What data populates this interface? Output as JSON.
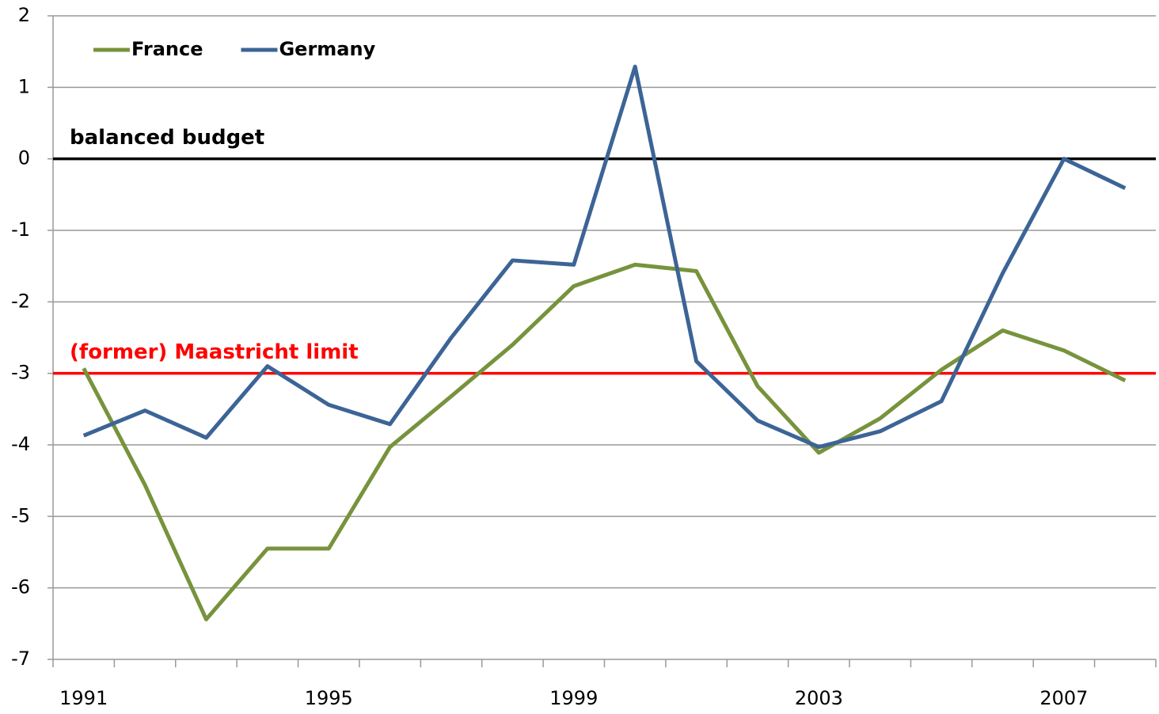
{
  "chart_data": {
    "type": "line",
    "categories": [
      "1991",
      null,
      null,
      null,
      "1995",
      null,
      null,
      null,
      "1999",
      null,
      null,
      null,
      "2003",
      null,
      null,
      null,
      "2007",
      null
    ],
    "series": [
      {
        "name": "France",
        "color": "#77933c",
        "values": [
          -2.93,
          -4.56,
          -6.44,
          -5.45,
          -5.45,
          -4.03,
          -3.32,
          -2.6,
          -1.78,
          -1.48,
          -1.57,
          -3.18,
          -4.11,
          -3.63,
          -2.95,
          -2.4,
          -2.68,
          -3.1
        ]
      },
      {
        "name": "Germany",
        "color": "#3c6496",
        "values": [
          -3.87,
          -3.52,
          -3.9,
          -2.9,
          -3.44,
          -3.71,
          -2.5,
          -1.42,
          -1.48,
          1.29,
          -2.83,
          -3.66,
          -4.03,
          -3.81,
          -3.39,
          -1.6,
          0,
          -0.41
        ]
      }
    ],
    "reference_lines": [
      {
        "label": "balanced budget",
        "value": 0,
        "color": "#000000"
      },
      {
        "label": "(former) Maastricht limit",
        "value": -3,
        "color": "#ff0000"
      }
    ],
    "ylim": [
      -7,
      2
    ],
    "yticks": [
      2,
      1,
      0,
      -1,
      -2,
      -3,
      -4,
      -5,
      -6,
      -7
    ],
    "grid": true,
    "legend": "top-left"
  }
}
